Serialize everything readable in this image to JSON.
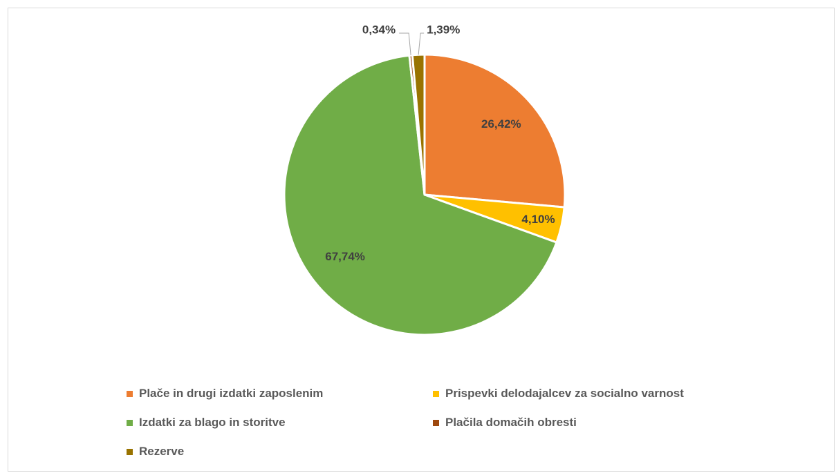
{
  "chart_data": {
    "type": "pie",
    "title": "",
    "categories": [
      "Plače in drugi izdatki zaposlenim",
      "Prispevki delodajalcev za socialno varnost",
      "Izdatki za blago in storitve",
      "Plačila domačih obresti",
      "Rezerve"
    ],
    "values": [
      26.42,
      4.1,
      67.74,
      0.34,
      1.39
    ],
    "labels": [
      "26,42%",
      "4,10%",
      "67,74%",
      "0,34%",
      "1,39%"
    ],
    "colors": [
      "#ED7D31",
      "#FFC000",
      "#70AD47",
      "#9E480E",
      "#997300"
    ],
    "legend_position": "bottom",
    "label_style": "bold percentages; small slices use leader lines above the pie"
  }
}
